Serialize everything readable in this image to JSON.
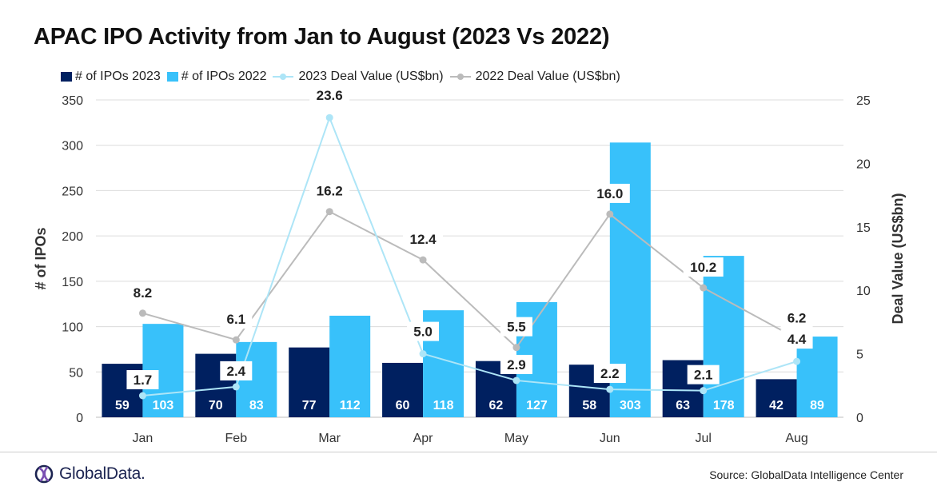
{
  "title": "APAC IPO Activity from Jan to August (2023 Vs 2022)",
  "legend": [
    {
      "label": "# of IPOs 2023",
      "kind": "box",
      "color": "#002060"
    },
    {
      "label": "# of IPOs 2022",
      "kind": "box",
      "color": "#38C1FA"
    },
    {
      "label": "2023 Deal Value (US$bn)",
      "kind": "line",
      "color": "#ADE5F7"
    },
    {
      "label": "2022 Deal Value (US$bn)",
      "kind": "line",
      "color": "#BBBBBB"
    }
  ],
  "footer": {
    "logo_text": "GlobalData.",
    "source": "Source:  GlobalData Intelligence Center"
  },
  "chart_data": {
    "type": "bar",
    "title": "APAC IPO Activity from Jan to August (2023 Vs 2022)",
    "categories": [
      "Jan",
      "Feb",
      "Mar",
      "Apr",
      "May",
      "Jun",
      "Jul",
      "Aug"
    ],
    "series": [
      {
        "name": "# of IPOs 2023",
        "type": "bar",
        "axis": "left",
        "color": "#002060",
        "values": [
          59,
          70,
          77,
          60,
          62,
          58,
          63,
          42
        ]
      },
      {
        "name": "# of IPOs 2022",
        "type": "bar",
        "axis": "left",
        "color": "#38C1FA",
        "values": [
          103,
          83,
          112,
          118,
          127,
          303,
          178,
          89
        ]
      },
      {
        "name": "2023 Deal Value (US$bn)",
        "type": "line",
        "axis": "right",
        "color": "#ADE5F7",
        "values": [
          1.7,
          2.4,
          23.6,
          5.0,
          2.9,
          2.2,
          2.1,
          4.4
        ]
      },
      {
        "name": "2022 Deal Value (US$bn)",
        "type": "line",
        "axis": "right",
        "color": "#BBBBBB",
        "values": [
          8.2,
          6.1,
          16.2,
          12.4,
          5.5,
          16.0,
          10.2,
          6.2
        ]
      }
    ],
    "y_left": {
      "label": "# of IPOs",
      "ticks": [
        0,
        50,
        100,
        150,
        200,
        250,
        300,
        350
      ],
      "range": [
        0,
        350
      ]
    },
    "y_right": {
      "label": "Deal Value (US$bn)",
      "ticks": [
        0,
        5,
        10,
        15,
        20,
        25
      ],
      "range": [
        0,
        25
      ]
    },
    "value_labels_2023_line": [
      "1.7",
      "2.4",
      "23.6",
      "5.0",
      "2.9",
      "2.2",
      "2.1",
      "4.4"
    ],
    "value_labels_2022_line": [
      "8.2",
      "6.1",
      "16.2",
      "12.4",
      "5.5",
      "16.0",
      "10.2",
      "6.2"
    ],
    "grid": "horizontal",
    "legend_position": "top-left"
  }
}
